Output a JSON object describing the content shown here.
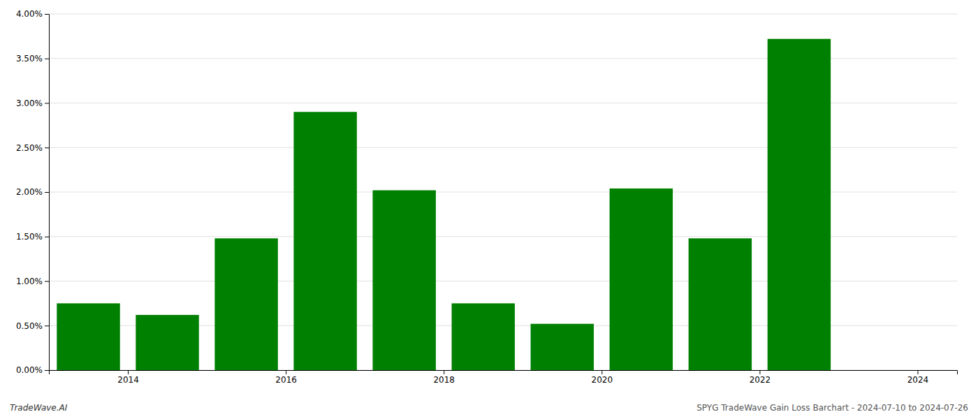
{
  "chart_data": {
    "type": "bar",
    "x": [
      2013.5,
      2014.5,
      2015.5,
      2016.5,
      2017.5,
      2018.5,
      2019.5,
      2020.5,
      2021.5,
      2022.5
    ],
    "values": [
      0.0075,
      0.0062,
      0.0148,
      0.029,
      0.0202,
      0.0075,
      0.0052,
      0.0204,
      0.0148,
      0.0372
    ],
    "color": "#008000",
    "xlim": [
      2013.0,
      2024.5
    ],
    "xticks": [
      2014,
      2016,
      2018,
      2020,
      2022,
      2024
    ],
    "ylim": [
      0,
      0.04
    ],
    "yticks": [
      {
        "value": 0.0,
        "label": "0.00%"
      },
      {
        "value": 0.005,
        "label": "0.50%"
      },
      {
        "value": 0.01,
        "label": "1.00%"
      },
      {
        "value": 0.015,
        "label": "1.50%"
      },
      {
        "value": 0.02,
        "label": "2.00%"
      },
      {
        "value": 0.025,
        "label": "2.50%"
      },
      {
        "value": 0.03,
        "label": "3.00%"
      },
      {
        "value": 0.035,
        "label": "3.50%"
      },
      {
        "value": 0.04,
        "label": "4.00%"
      }
    ],
    "grid": true,
    "annotations": [
      "TradeWave.AI",
      "SPYG TradeWave Gain Loss Barchart - 2024-07-10 to 2024-07-26"
    ]
  }
}
